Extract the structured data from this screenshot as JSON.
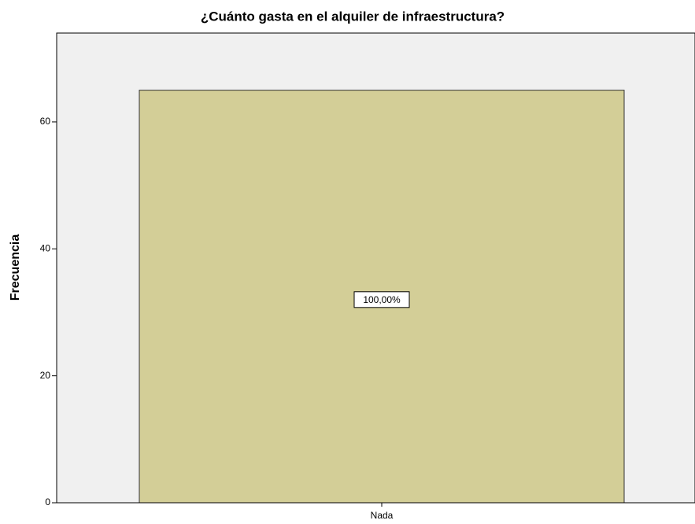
{
  "chart_data": {
    "type": "bar",
    "title": "¿Cuánto gasta en el alquiler de infraestructura?",
    "y_label": "Frecuencia",
    "categories": [
      "Nada"
    ],
    "values": [
      65
    ],
    "color": "#d3ce97",
    "annotations": [
      "100,00%"
    ],
    "ylim": [
      0,
      74
    ],
    "yticks": [
      0,
      20,
      40,
      60
    ],
    "grid": false
  }
}
